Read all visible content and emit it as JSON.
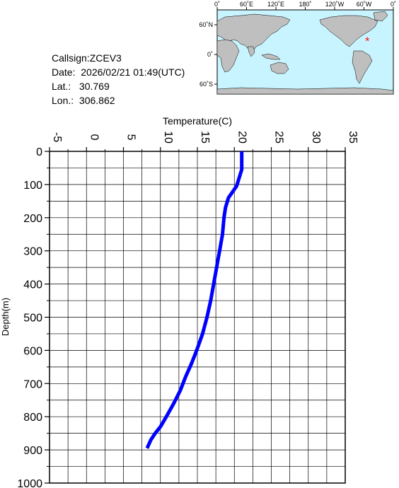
{
  "meta": {
    "callsign_label": "Callsign:",
    "callsign": "ZCEV3",
    "date_label": "Date:",
    "date": "2026/02/21 01:49(UTC)",
    "lat_label": "Lat.:",
    "lat": "30.769",
    "lon_label": "Lon.:",
    "lon": "306.862"
  },
  "map": {
    "lon_ticks": [
      "0˚",
      "60˚E",
      "120˚E",
      "180˚",
      "120˚W",
      "60˚W",
      "0˚"
    ],
    "lat_ticks": [
      "60˚N",
      "0˚",
      "60˚S"
    ],
    "marker": {
      "lat": 30.769,
      "lon": 306.862,
      "symbol": "*",
      "color": "#ff0000"
    },
    "ocean_color": "#c8f4ff",
    "land_color": "#bfbfbf"
  },
  "chart_data": {
    "type": "line",
    "xlabel": "Temperature(C)",
    "ylabel": "Depth(m)",
    "xlim": [
      -5,
      35
    ],
    "ylim": [
      0,
      1000
    ],
    "y_inverted": true,
    "x_axis_position": "top",
    "grid": true,
    "xticks": [
      "-5",
      "0",
      "5",
      "10",
      "15",
      "20",
      "25",
      "30",
      "35"
    ],
    "yticks": [
      "0",
      "100",
      "200",
      "300",
      "400",
      "500",
      "600",
      "700",
      "800",
      "900",
      "1000"
    ],
    "series": [
      {
        "color": "#0000ff",
        "x": [
          21.0,
          21.0,
          20.3,
          19.2,
          18.8,
          18.6,
          18.4,
          18.0,
          17.6,
          17.2,
          16.8,
          16.3,
          15.7,
          14.9,
          14.2,
          13.4,
          12.7,
          11.8,
          10.8,
          10.0,
          9.3,
          8.7,
          8.2
        ],
        "y": [
          0,
          55,
          105,
          140,
          170,
          200,
          250,
          300,
          350,
          400,
          450,
          500,
          550,
          600,
          640,
          680,
          720,
          760,
          800,
          830,
          850,
          870,
          895
        ]
      }
    ]
  }
}
